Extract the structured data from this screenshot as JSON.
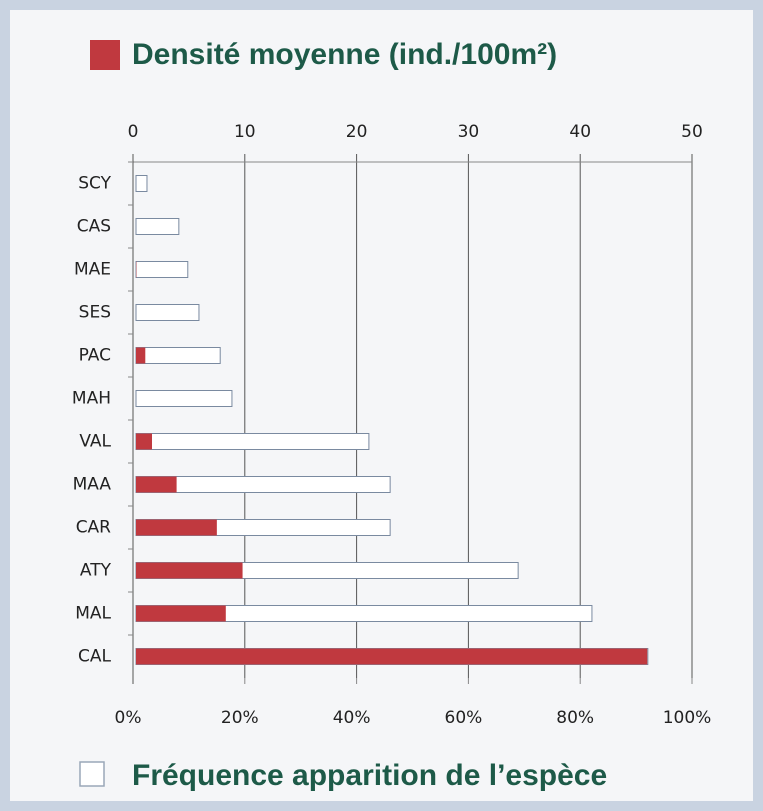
{
  "chart_data": {
    "type": "bar",
    "orientation": "horizontal",
    "categories": [
      "SCY",
      "CAS",
      "MAE",
      "SES",
      "PAC",
      "MAH",
      "VAL",
      "MAA",
      "CAR",
      "ATY",
      "MAL",
      "CAL"
    ],
    "series": [
      {
        "name": "Densité moyenne (ind./100m²)",
        "color": "#c0393f",
        "axis": "x2",
        "values": [
          0,
          0,
          0.3,
          0,
          1.1,
          0,
          1.7,
          3.9,
          7.5,
          9.8,
          8.3,
          46
        ]
      },
      {
        "name": "Fréquence apparition de l’espèce",
        "color": "#ffffff",
        "axis": "x",
        "values": [
          2.5,
          8.2,
          9.8,
          11.8,
          15.6,
          17.7,
          42.2,
          46,
          46,
          68.9,
          82.1,
          92.1
        ]
      }
    ],
    "x2lim": [
      0,
      50
    ],
    "x2ticks": [
      0,
      10,
      20,
      30,
      40,
      50
    ],
    "xlim": [
      0,
      100
    ],
    "xticks": [
      {
        "value": 0,
        "label": "0%"
      },
      {
        "value": 20,
        "label": "20%"
      },
      {
        "value": 40,
        "label": "40%"
      },
      {
        "value": 60,
        "label": "60%"
      },
      {
        "value": 80,
        "label": "80%"
      },
      {
        "value": 100,
        "label": "100%"
      }
    ],
    "grid": true
  }
}
